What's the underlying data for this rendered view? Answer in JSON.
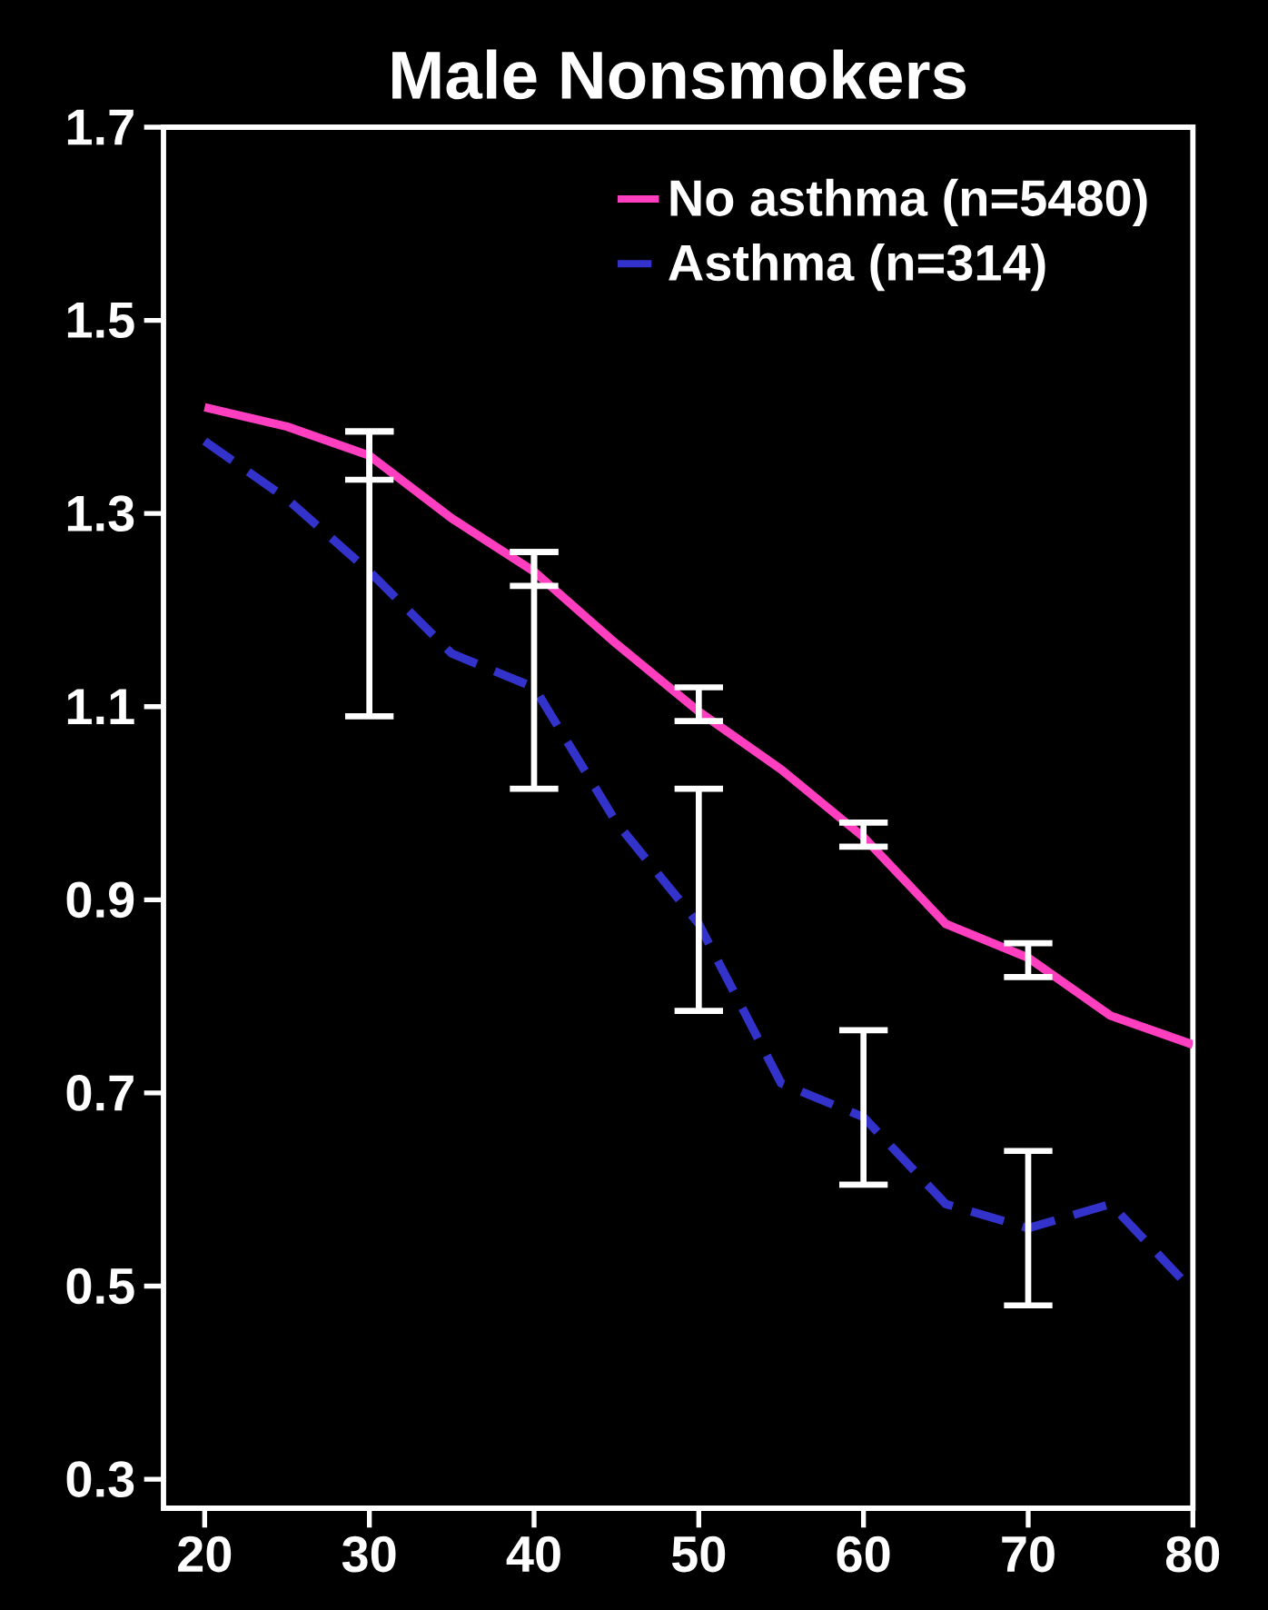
{
  "chart_data": {
    "type": "line",
    "title": "Male Nonsmokers",
    "x": [
      20,
      25,
      30,
      35,
      40,
      45,
      50,
      55,
      60,
      65,
      70,
      75,
      80
    ],
    "xlim": [
      17.5,
      80
    ],
    "xticks": [
      20,
      30,
      40,
      50,
      60,
      70,
      80
    ],
    "ylim": [
      0.27,
      1.7
    ],
    "yticks": [
      0.3,
      0.5,
      0.7,
      0.9,
      1.1,
      1.3,
      1.5,
      1.7
    ],
    "legend": "top right",
    "marker": "none",
    "series": [
      {
        "name": "No asthma (n=5480)",
        "color": "#ff3fbf",
        "line_style": "solid",
        "values": [
          1.41,
          1.39,
          1.36,
          1.295,
          1.24,
          1.165,
          1.095,
          1.035,
          0.965,
          0.875,
          0.84,
          0.78,
          0.75
        ],
        "errors": [
          null,
          null,
          [
            1.335,
            1.385
          ],
          null,
          [
            1.225,
            1.26
          ],
          null,
          [
            1.085,
            1.12
          ],
          null,
          [
            0.955,
            0.98
          ],
          null,
          [
            0.82,
            0.855
          ],
          null,
          null
        ]
      },
      {
        "name": "Asthma (n=314)",
        "color": "#3333cc",
        "line_style": "dashed",
        "values": [
          1.375,
          1.315,
          1.24,
          1.155,
          1.12,
          0.98,
          0.875,
          0.71,
          0.675,
          0.585,
          0.56,
          0.585,
          0.495
        ],
        "errors": [
          null,
          null,
          [
            1.09,
            1.385
          ],
          null,
          [
            1.015,
            1.26
          ],
          null,
          [
            0.785,
            1.015
          ],
          null,
          [
            0.605,
            0.765
          ],
          null,
          [
            0.48,
            0.64
          ],
          null,
          null
        ]
      }
    ]
  }
}
